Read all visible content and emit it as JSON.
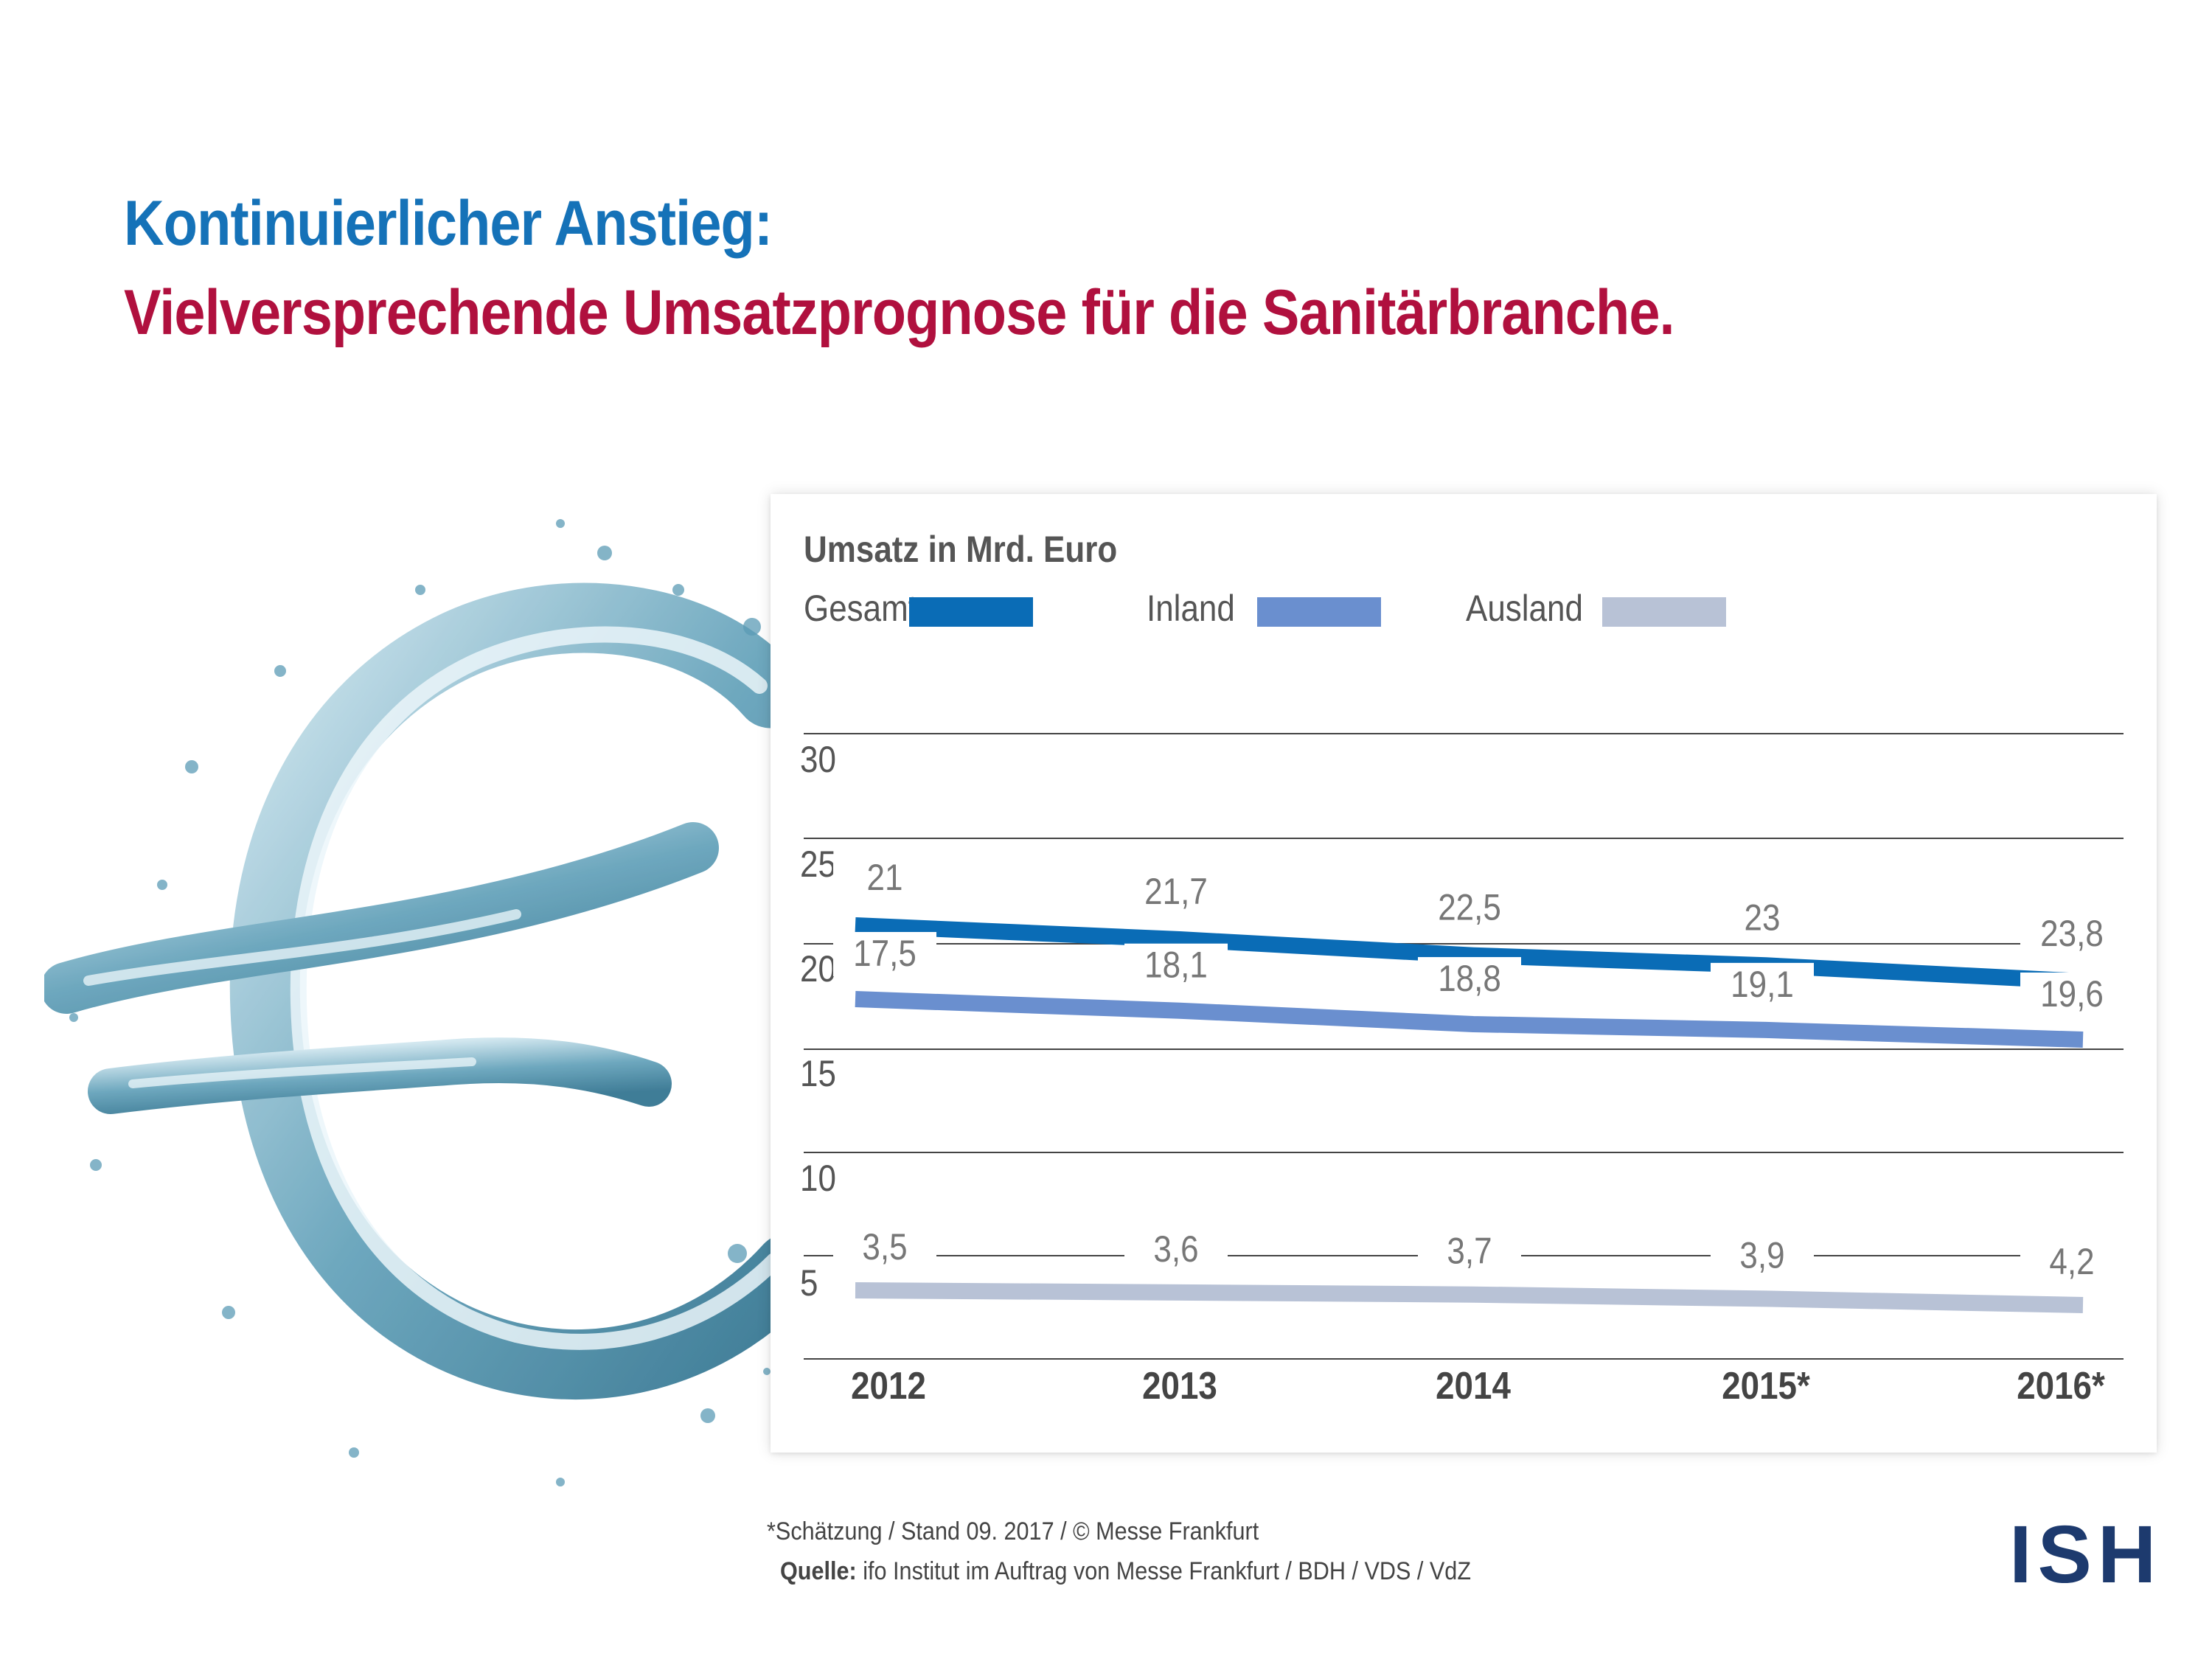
{
  "header": {
    "title_line1": "Kontinuierlicher Anstieg:",
    "title_line2": "Vielversprechende Umsatzprognose für die Sanitärbranche.",
    "title_line1_color": "#1572b8",
    "title_line2_color": "#b0103e"
  },
  "decoration": {
    "splash_icon": "euro-water-splash-icon"
  },
  "chart_data": {
    "type": "line",
    "title": "Umsatz in Mrd. Euro",
    "categories": [
      "2012",
      "2013",
      "2014",
      "2015*",
      "2016*"
    ],
    "yticks": [
      "30",
      "25",
      "20",
      "15",
      "10",
      "5"
    ],
    "ylim": [
      5,
      30
    ],
    "grid": true,
    "legend_position": "top-left",
    "series": [
      {
        "name": "Gesamt",
        "values": [
          21,
          21.7,
          22.5,
          23,
          23.8
        ],
        "labels": [
          "21",
          "21,7",
          "22,5",
          "23",
          "23,8"
        ],
        "color": "#0a6cb6"
      },
      {
        "name": "Inland",
        "values": [
          17.5,
          18.1,
          18.8,
          19.1,
          19.6
        ],
        "labels": [
          "17,5",
          "18,1",
          "18,8",
          "19,1",
          "19,6"
        ],
        "color": "#6a8fcf"
      },
      {
        "name": "Ausland",
        "values": [
          3.5,
          3.6,
          3.7,
          3.9,
          4.2
        ],
        "labels": [
          "3,5",
          "3,6",
          "3,7",
          "3,9",
          "4,2"
        ],
        "color": "#b8c2d6"
      }
    ]
  },
  "footer": {
    "note": "*Schätzung / Stand 09. 2017 / © Messe Frankfurt",
    "source_label": "Quelle:",
    "source_text": " ifo Institut im Auftrag von Messe Frankfurt / BDH / VDS / VdZ",
    "logo": "ISH",
    "logo_color": "#1d3a6e"
  }
}
